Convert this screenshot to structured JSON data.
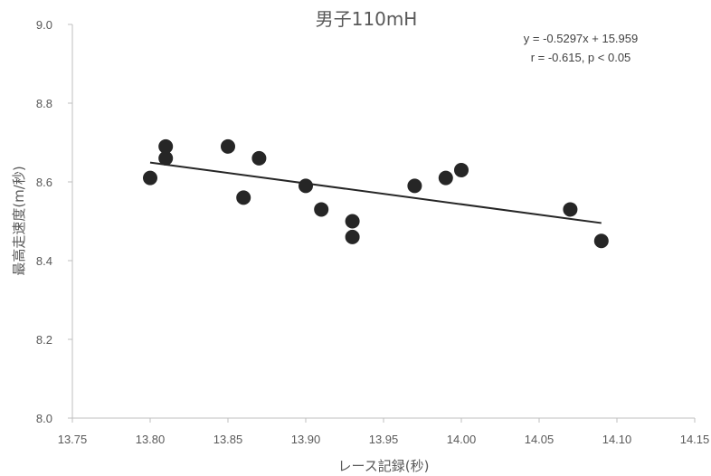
{
  "chart_data": {
    "type": "scatter",
    "title": "男子110mH",
    "xlabel": "レース記録(秒)",
    "ylabel": "最高走速度(m/秒)",
    "xlim": [
      13.75,
      14.15
    ],
    "ylim": [
      8.0,
      9.0
    ],
    "x_ticks": [
      "13.75",
      "13.80",
      "13.85",
      "13.90",
      "13.95",
      "14.00",
      "14.05",
      "14.10",
      "14.15"
    ],
    "y_ticks": [
      "8.0",
      "8.2",
      "8.4",
      "8.6",
      "8.8",
      "9.0"
    ],
    "grid": false,
    "points": [
      {
        "x": 13.8,
        "y": 8.61
      },
      {
        "x": 13.81,
        "y": 8.69
      },
      {
        "x": 13.81,
        "y": 8.66
      },
      {
        "x": 13.85,
        "y": 8.69
      },
      {
        "x": 13.86,
        "y": 8.56
      },
      {
        "x": 13.87,
        "y": 8.66
      },
      {
        "x": 13.9,
        "y": 8.59
      },
      {
        "x": 13.91,
        "y": 8.53
      },
      {
        "x": 13.93,
        "y": 8.5
      },
      {
        "x": 13.93,
        "y": 8.46
      },
      {
        "x": 13.97,
        "y": 8.59
      },
      {
        "x": 13.99,
        "y": 8.61
      },
      {
        "x": 14.0,
        "y": 8.63
      },
      {
        "x": 14.07,
        "y": 8.53
      },
      {
        "x": 14.09,
        "y": 8.45
      }
    ],
    "trendline": {
      "type": "linear",
      "slope": -0.5297,
      "intercept": 15.959,
      "x_range": [
        13.8,
        14.09
      ]
    },
    "annotations": [
      "y = -0.5297x + 15.959",
      "r = -0.615, p < 0.05"
    ],
    "colors": {
      "marker": "#262626",
      "trendline": "#262626",
      "axis": "#bfbfbf",
      "text": "#595959"
    }
  }
}
